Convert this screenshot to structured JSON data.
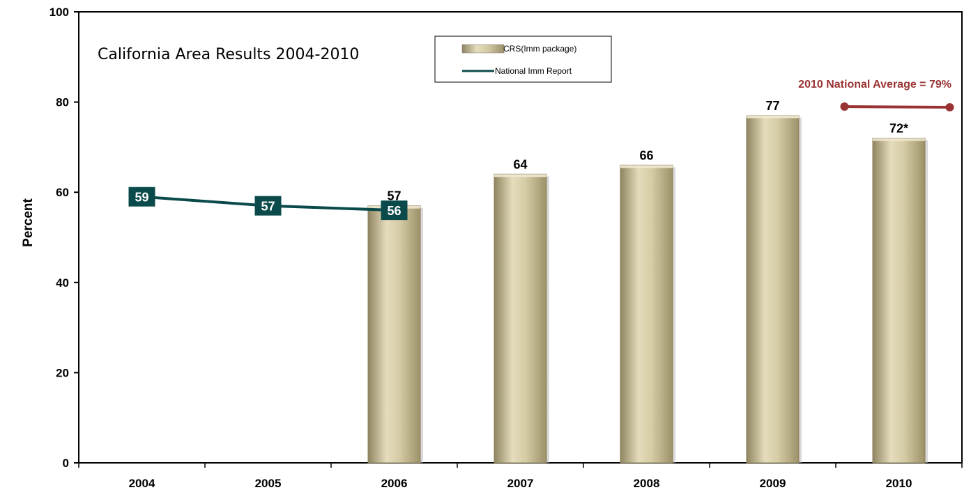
{
  "chart_data": {
    "type": "bar",
    "title": "California Area Results 2004-2010",
    "ylabel": "Percent",
    "xlabel": "",
    "ylim": [
      0,
      100
    ],
    "yticks": [
      "0",
      "20",
      "40",
      "60",
      "80",
      "100"
    ],
    "categories": [
      "2004",
      "2005",
      "2006",
      "2007",
      "2008",
      "2009",
      "2010"
    ],
    "series": [
      {
        "name": "CRS(Imm package)",
        "kind": "bar",
        "values": [
          null,
          null,
          57,
          64,
          66,
          77,
          72
        ],
        "labels": [
          "",
          "",
          "57",
          "64",
          "66",
          "77",
          "72*"
        ],
        "color": "#cdc29a"
      },
      {
        "name": "National Imm Report",
        "kind": "line",
        "values": [
          59,
          57,
          56,
          null,
          null,
          null,
          null
        ],
        "labels": [
          "59",
          "57",
          "56",
          "",
          "",
          "",
          ""
        ],
        "color": "#0b4a4a"
      }
    ],
    "annotation": {
      "text": "2010 National Average = 79%",
      "value": 79,
      "color": "#993333"
    },
    "grid": false,
    "legend": "top-center"
  }
}
